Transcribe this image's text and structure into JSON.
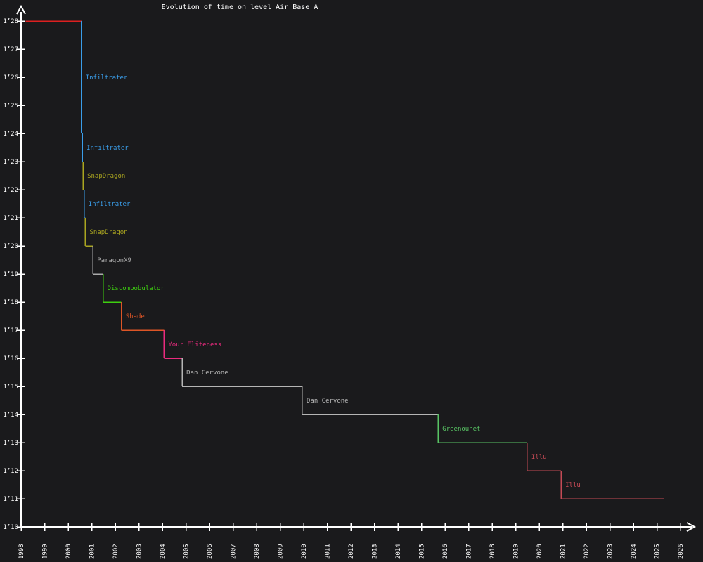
{
  "title": "Evolution of time on level Air Base A",
  "background_color": "#1a1a1c",
  "axis_color": "#ffffff",
  "chart_data": {
    "type": "line",
    "subtype": "step-record-progression",
    "title": "Evolution of time on level Air Base A",
    "xlabel": "",
    "ylabel": "",
    "grid": false,
    "legend": "inline-labels",
    "xlim": [
      1998,
      2026
    ],
    "ylim_seconds": [
      70,
      88
    ],
    "x_ticks": [
      1998,
      1999,
      2000,
      2001,
      2002,
      2003,
      2004,
      2005,
      2006,
      2007,
      2008,
      2009,
      2010,
      2011,
      2012,
      2013,
      2014,
      2015,
      2016,
      2017,
      2018,
      2019,
      2020,
      2021,
      2022,
      2023,
      2024,
      2025,
      2026
    ],
    "y_ticks": [
      "1’28",
      "1’27",
      "1’26",
      "1’25",
      "1’24",
      "1’23",
      "1’22",
      "1’21",
      "1’20",
      "1’19",
      "1’18",
      "1’17",
      "1’16",
      "1’15",
      "1’14",
      "1’13",
      "1’12",
      "1’11",
      "1’10"
    ],
    "initial_record": {
      "time": "1’28",
      "seconds": 88,
      "start_year": 1998.2,
      "color": "#dd2020"
    },
    "records": [
      {
        "player": "Infiltrater",
        "year": 2000.56,
        "time": "1’24",
        "seconds": 84,
        "color": "#3a9de8"
      },
      {
        "player": "Infiltrater",
        "year": 2000.6,
        "time": "1’23",
        "seconds": 83,
        "color": "#3a9de8"
      },
      {
        "player": "SnapDragon",
        "year": 2000.63,
        "time": "1’22",
        "seconds": 82,
        "color": "#aaa520"
      },
      {
        "player": "Infiltrater",
        "year": 2000.68,
        "time": "1’21",
        "seconds": 81,
        "color": "#3a9de8"
      },
      {
        "player": "SnapDragon",
        "year": 2000.73,
        "time": "1’20",
        "seconds": 80,
        "color": "#aaa520"
      },
      {
        "player": "ParagonX9",
        "year": 2001.05,
        "time": "1’19",
        "seconds": 79,
        "color": "#ababab"
      },
      {
        "player": "Discombobulator",
        "year": 2001.48,
        "time": "1’18",
        "seconds": 78,
        "color": "#3ecf10"
      },
      {
        "player": "Shade",
        "year": 2002.26,
        "time": "1’17",
        "seconds": 77,
        "color": "#dd5526"
      },
      {
        "player": "Your Eliteness",
        "year": 2004.07,
        "time": "1’16",
        "seconds": 76,
        "color": "#ea2b7e"
      },
      {
        "player": "Dan Cervone",
        "year": 2004.84,
        "time": "1’15",
        "seconds": 75,
        "color": "#b5b5b5"
      },
      {
        "player": "Dan Cervone",
        "year": 2009.94,
        "time": "1’14",
        "seconds": 74,
        "color": "#b5b5b5"
      },
      {
        "player": "Greenounet",
        "year": 2015.71,
        "time": "1’13",
        "seconds": 73,
        "color": "#58c364"
      },
      {
        "player": "Illu",
        "year": 2019.49,
        "time": "1’12",
        "seconds": 72,
        "color": "#c44a55"
      },
      {
        "player": "Illu",
        "year": 2020.93,
        "time": "1’11",
        "seconds": 71,
        "color": "#c44a55"
      }
    ],
    "series_end_year": 2025.3
  }
}
